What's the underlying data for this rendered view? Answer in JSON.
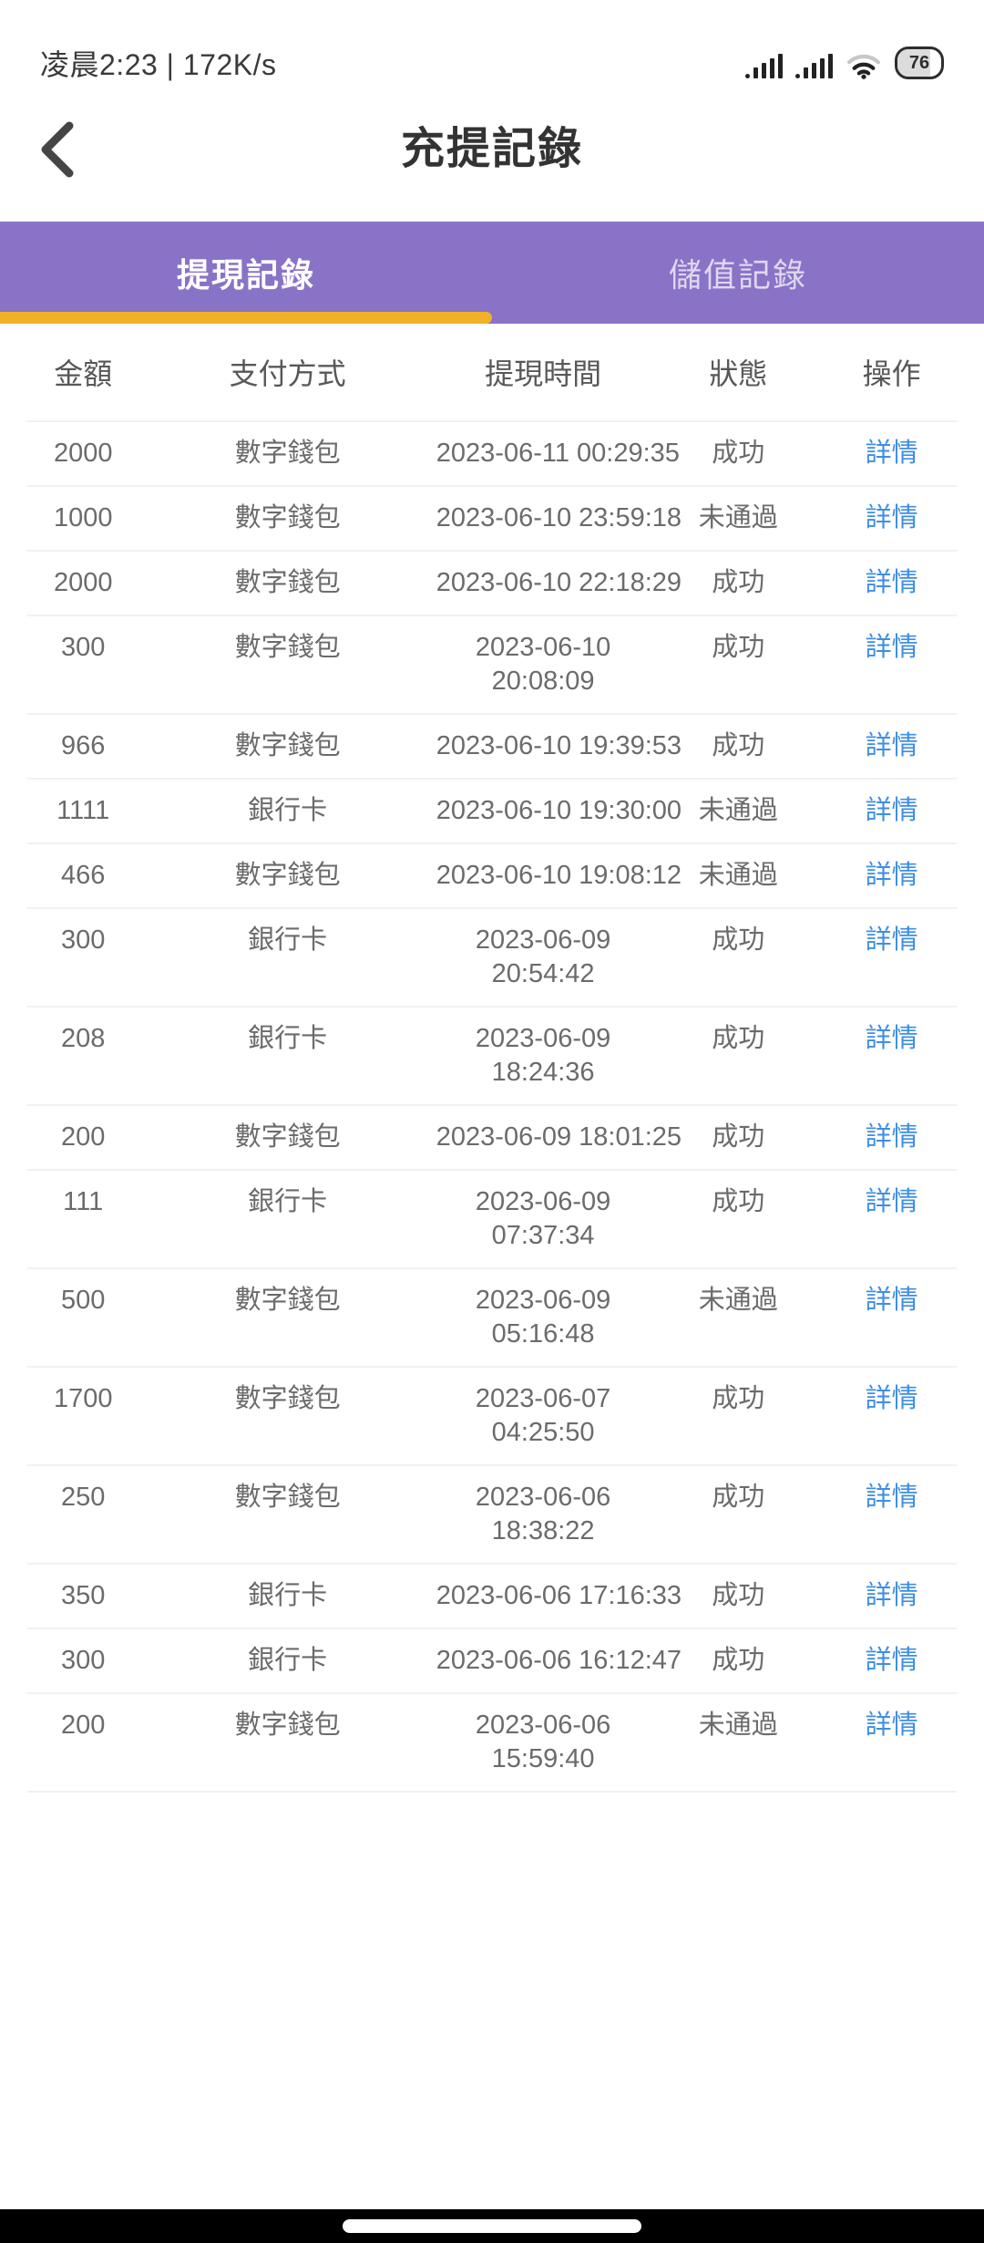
{
  "status_bar": {
    "left_text": "凌晨2:23 | 172K/s",
    "battery_percent": "76",
    "icons": [
      "cell-signal-icon",
      "cell-signal-icon",
      "wifi-icon",
      "battery-icon"
    ]
  },
  "header": {
    "title": "充提記錄",
    "back_icon": "chevron-left-icon"
  },
  "tabs": {
    "items": [
      {
        "label": "提現記錄",
        "active": true
      },
      {
        "label": "儲值記錄",
        "active": false
      }
    ]
  },
  "table": {
    "columns": [
      "金額",
      "支付方式",
      "提現時間",
      "狀態",
      "操作"
    ],
    "action_label": "詳情",
    "rows": [
      {
        "amount": "2000",
        "method": "數字錢包",
        "time": [
          "2023-06-11 00:29:35"
        ],
        "status": "成功"
      },
      {
        "amount": "1000",
        "method": "數字錢包",
        "time": [
          "2023-06-10 23:59:18"
        ],
        "status": "未通過"
      },
      {
        "amount": "2000",
        "method": "數字錢包",
        "time": [
          "2023-06-10 22:18:29"
        ],
        "status": "成功"
      },
      {
        "amount": "300",
        "method": "數字錢包",
        "time": [
          "2023-06-10",
          "20:08:09"
        ],
        "status": "成功"
      },
      {
        "amount": "966",
        "method": "數字錢包",
        "time": [
          "2023-06-10 19:39:53"
        ],
        "status": "成功"
      },
      {
        "amount": "1111",
        "method": "銀行卡",
        "time": [
          "2023-06-10 19:30:00"
        ],
        "status": "未通過"
      },
      {
        "amount": "466",
        "method": "數字錢包",
        "time": [
          "2023-06-10 19:08:12"
        ],
        "status": "未通過"
      },
      {
        "amount": "300",
        "method": "銀行卡",
        "time": [
          "2023-06-09",
          "20:54:42"
        ],
        "status": "成功"
      },
      {
        "amount": "208",
        "method": "銀行卡",
        "time": [
          "2023-06-09",
          "18:24:36"
        ],
        "status": "成功"
      },
      {
        "amount": "200",
        "method": "數字錢包",
        "time": [
          "2023-06-09 18:01:25"
        ],
        "status": "成功"
      },
      {
        "amount": "111",
        "method": "銀行卡",
        "time": [
          "2023-06-09",
          "07:37:34"
        ],
        "status": "成功"
      },
      {
        "amount": "500",
        "method": "數字錢包",
        "time": [
          "2023-06-09",
          "05:16:48"
        ],
        "status": "未通過"
      },
      {
        "amount": "1700",
        "method": "數字錢包",
        "time": [
          "2023-06-07",
          "04:25:50"
        ],
        "status": "成功"
      },
      {
        "amount": "250",
        "method": "數字錢包",
        "time": [
          "2023-06-06",
          "18:38:22"
        ],
        "status": "成功"
      },
      {
        "amount": "350",
        "method": "銀行卡",
        "time": [
          "2023-06-06 17:16:33"
        ],
        "status": "成功"
      },
      {
        "amount": "300",
        "method": "銀行卡",
        "time": [
          "2023-06-06 16:12:47"
        ],
        "status": "成功"
      },
      {
        "amount": "200",
        "method": "數字錢包",
        "time": [
          "2023-06-06",
          "15:59:40"
        ],
        "status": "未通過"
      }
    ]
  },
  "colors": {
    "tab_bar_purple": "#8973C7",
    "active_tab_underline_amber": "#F1B229",
    "link_blue": "#3E8EE3",
    "row_text_gray": "#6b6b6b",
    "divider_gray": "#f1f1f1"
  }
}
